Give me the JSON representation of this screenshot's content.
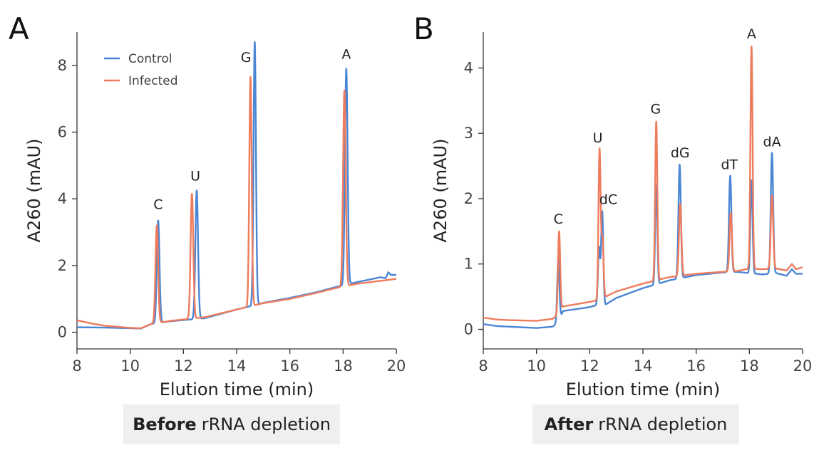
{
  "chart_data": [
    {
      "type": "line",
      "panel_label": "A",
      "xlabel": "Elution time (min)",
      "ylabel": "A260 (mAU)",
      "xlim": [
        8,
        20
      ],
      "ylim": [
        -0.5,
        9
      ],
      "xticks": [
        8,
        10,
        12,
        14,
        16,
        18,
        20
      ],
      "yticks": [
        0,
        2,
        4,
        6,
        8
      ],
      "legend": {
        "position": "top-left"
      },
      "peak_labels": [
        {
          "text": "C",
          "x": 11.05,
          "y": 3.7
        },
        {
          "text": "U",
          "x": 12.45,
          "y": 4.55
        },
        {
          "text": "G",
          "x": 14.35,
          "y": 8.1
        },
        {
          "text": "A",
          "x": 18.12,
          "y": 8.2
        }
      ],
      "series": [
        {
          "name": "Control",
          "color": "#4a86d4",
          "baseline": [
            [
              8,
              0.15
            ],
            [
              9,
              0.14
            ],
            [
              10,
              0.12
            ],
            [
              10.4,
              0.11
            ],
            [
              10.8,
              0.25
            ],
            [
              11.5,
              0.33
            ],
            [
              12.8,
              0.42
            ],
            [
              14,
              0.68
            ],
            [
              14.6,
              0.8
            ],
            [
              15,
              0.88
            ],
            [
              16,
              1.03
            ],
            [
              17,
              1.2
            ],
            [
              17.7,
              1.35
            ],
            [
              18.5,
              1.5
            ],
            [
              19,
              1.58
            ],
            [
              19.4,
              1.65
            ],
            [
              19.6,
              1.62
            ],
            [
              19.7,
              1.8
            ],
            [
              19.8,
              1.72
            ],
            [
              20,
              1.72
            ]
          ],
          "peaks": [
            {
              "x": 11.05,
              "h": 3.35,
              "w": 0.05
            },
            {
              "x": 12.5,
              "h": 4.25,
              "w": 0.05
            },
            {
              "x": 14.68,
              "h": 8.7,
              "w": 0.045
            },
            {
              "x": 18.12,
              "h": 7.9,
              "w": 0.05
            }
          ]
        },
        {
          "name": "Infected",
          "color": "#ef7b5c",
          "baseline": [
            [
              8,
              0.36
            ],
            [
              8.5,
              0.27
            ],
            [
              9,
              0.2
            ],
            [
              10,
              0.13
            ],
            [
              10.4,
              0.12
            ],
            [
              10.8,
              0.25
            ],
            [
              11.5,
              0.34
            ],
            [
              12.8,
              0.45
            ],
            [
              14,
              0.68
            ],
            [
              14.6,
              0.8
            ],
            [
              15,
              0.87
            ],
            [
              16,
              1.0
            ],
            [
              17,
              1.18
            ],
            [
              17.7,
              1.32
            ],
            [
              18.5,
              1.45
            ],
            [
              19,
              1.5
            ],
            [
              19.5,
              1.55
            ],
            [
              20,
              1.6
            ]
          ],
          "peaks": [
            {
              "x": 11.0,
              "h": 3.2,
              "w": 0.05
            },
            {
              "x": 12.32,
              "h": 4.15,
              "w": 0.05
            },
            {
              "x": 14.52,
              "h": 7.65,
              "w": 0.045
            },
            {
              "x": 18.05,
              "h": 7.25,
              "w": 0.05
            }
          ]
        }
      ]
    },
    {
      "type": "line",
      "panel_label": "B",
      "xlabel": "Elution time (min)",
      "ylabel": "A260 (mAU)",
      "xlim": [
        8,
        20
      ],
      "ylim": [
        -0.3,
        4.55
      ],
      "xticks": [
        8,
        10,
        12,
        14,
        16,
        18,
        20
      ],
      "yticks": [
        0,
        1,
        2,
        3,
        4
      ],
      "legend": null,
      "peak_labels": [
        {
          "text": "C",
          "x": 10.82,
          "y": 1.62
        },
        {
          "text": "U",
          "x": 12.3,
          "y": 2.86
        },
        {
          "text": "dC",
          "x": 12.7,
          "y": 1.92
        },
        {
          "text": "G",
          "x": 14.48,
          "y": 3.3
        },
        {
          "text": "dG",
          "x": 15.4,
          "y": 2.63
        },
        {
          "text": "dT",
          "x": 17.25,
          "y": 2.45
        },
        {
          "text": "A",
          "x": 18.08,
          "y": 4.45
        },
        {
          "text": "dA",
          "x": 18.85,
          "y": 2.8
        }
      ],
      "series": [
        {
          "name": "Control",
          "color": "#4a86d4",
          "baseline": [
            [
              8,
              0.08
            ],
            [
              8.5,
              0.05
            ],
            [
              9,
              0.04
            ],
            [
              10,
              0.02
            ],
            [
              10.6,
              0.04
            ],
            [
              10.8,
              0.1
            ],
            [
              11,
              0.28
            ],
            [
              12,
              0.34
            ],
            [
              12.35,
              0.38
            ],
            [
              12.6,
              0.38
            ],
            [
              13,
              0.48
            ],
            [
              14,
              0.63
            ],
            [
              14.6,
              0.7
            ],
            [
              15,
              0.75
            ],
            [
              16,
              0.83
            ],
            [
              17,
              0.87
            ],
            [
              17.5,
              0.88
            ],
            [
              18,
              0.86
            ],
            [
              18.5,
              0.84
            ],
            [
              19,
              0.86
            ],
            [
              19.4,
              0.82
            ],
            [
              19.6,
              0.92
            ],
            [
              19.75,
              0.85
            ],
            [
              20,
              0.85
            ]
          ],
          "peaks": [
            {
              "x": 10.82,
              "h": 1.1,
              "w": 0.04
            },
            {
              "x": 12.35,
              "h": 1.25,
              "w": 0.04
            },
            {
              "x": 12.47,
              "h": 1.8,
              "w": 0.04
            },
            {
              "x": 14.5,
              "h": 2.2,
              "w": 0.04
            },
            {
              "x": 15.38,
              "h": 2.52,
              "w": 0.045
            },
            {
              "x": 17.28,
              "h": 2.35,
              "w": 0.045
            },
            {
              "x": 18.08,
              "h": 2.28,
              "w": 0.04
            },
            {
              "x": 18.85,
              "h": 2.7,
              "w": 0.045
            }
          ]
        },
        {
          "name": "Infected",
          "color": "#ef7b5c",
          "baseline": [
            [
              8,
              0.18
            ],
            [
              8.5,
              0.15
            ],
            [
              9,
              0.14
            ],
            [
              10,
              0.13
            ],
            [
              10.6,
              0.16
            ],
            [
              10.8,
              0.22
            ],
            [
              11,
              0.35
            ],
            [
              12,
              0.42
            ],
            [
              12.35,
              0.45
            ],
            [
              12.6,
              0.5
            ],
            [
              13,
              0.58
            ],
            [
              14,
              0.7
            ],
            [
              14.6,
              0.76
            ],
            [
              15,
              0.8
            ],
            [
              16,
              0.85
            ],
            [
              17,
              0.88
            ],
            [
              17.5,
              0.89
            ],
            [
              18,
              0.93
            ],
            [
              18.5,
              0.92
            ],
            [
              19,
              0.93
            ],
            [
              19.4,
              0.9
            ],
            [
              19.6,
              1.0
            ],
            [
              19.75,
              0.92
            ],
            [
              20,
              0.95
            ]
          ],
          "peaks": [
            {
              "x": 10.85,
              "h": 1.5,
              "w": 0.04
            },
            {
              "x": 12.37,
              "h": 2.75,
              "w": 0.04
            },
            {
              "x": 12.48,
              "h": 1.38,
              "w": 0.04
            },
            {
              "x": 14.5,
              "h": 3.18,
              "w": 0.04
            },
            {
              "x": 15.4,
              "h": 1.92,
              "w": 0.045
            },
            {
              "x": 17.3,
              "h": 1.78,
              "w": 0.045
            },
            {
              "x": 18.08,
              "h": 4.33,
              "w": 0.04
            },
            {
              "x": 18.85,
              "h": 2.05,
              "w": 0.045
            }
          ]
        }
      ]
    }
  ],
  "captions": [
    {
      "bold": "Before",
      "rest": "rRNA depletion"
    },
    {
      "bold": "After",
      "rest": "rRNA depletion"
    }
  ]
}
